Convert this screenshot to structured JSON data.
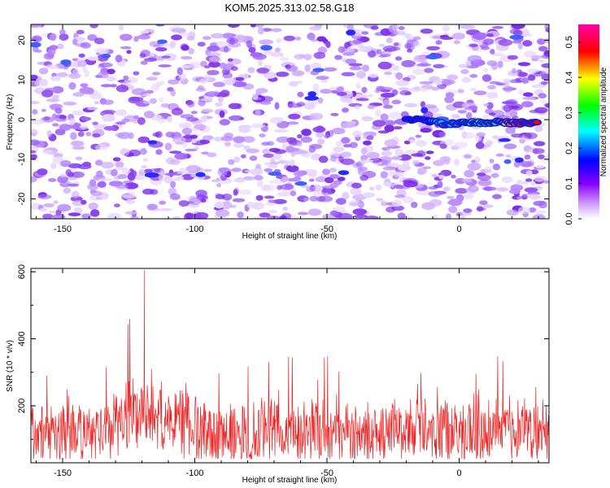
{
  "chart_data": [
    {
      "type": "heatmap",
      "title": "KOM5.2025.313.02.58.G18",
      "xlabel": "Height of straight line (km)",
      "ylabel": "Frequency (Hz)",
      "xlim": [
        -162,
        34
      ],
      "ylim": [
        -25,
        24
      ],
      "xticks": [
        -150,
        -100,
        -50,
        0
      ],
      "yticks": [
        -20,
        -10,
        0,
        10,
        20
      ],
      "colorbar": {
        "label": "Normalized spectral amplitude",
        "range": [
          0.0,
          0.55
        ],
        "ticks": [
          0.0,
          0.1,
          0.2,
          0.3,
          0.4,
          0.5
        ],
        "colors": [
          "#ffffff",
          "#8800ff",
          "#0000ff",
          "#00ffff",
          "#00ff00",
          "#ffff00",
          "#ff0000",
          "#ff00aa"
        ]
      },
      "trace": {
        "x": [
          -20,
          -12,
          -5,
          0,
          5,
          10,
          15,
          20,
          25,
          30
        ],
        "y": [
          0.1,
          -0.2,
          -1.2,
          -1.0,
          -0.6,
          -1.0,
          -0.6,
          -0.9,
          -0.8,
          -0.8
        ],
        "amplitude": [
          0.12,
          0.15,
          0.22,
          0.25,
          0.28,
          0.3,
          0.32,
          0.45,
          0.52,
          0.52
        ]
      },
      "background_level": 0.05
    },
    {
      "type": "line",
      "xlabel": "Height of straight line (km)",
      "ylabel": "SNR (10 * v/v)",
      "xlim": [
        -162,
        34
      ],
      "ylim": [
        30,
        610
      ],
      "xticks": [
        -150,
        -100,
        -50,
        0
      ],
      "yticks": [
        200,
        400,
        600
      ],
      "series": [
        {
          "color": "#ee2222",
          "baseline": 120,
          "spread": 95,
          "peak_x": -119,
          "peak_y": 606
        }
      ]
    }
  ]
}
